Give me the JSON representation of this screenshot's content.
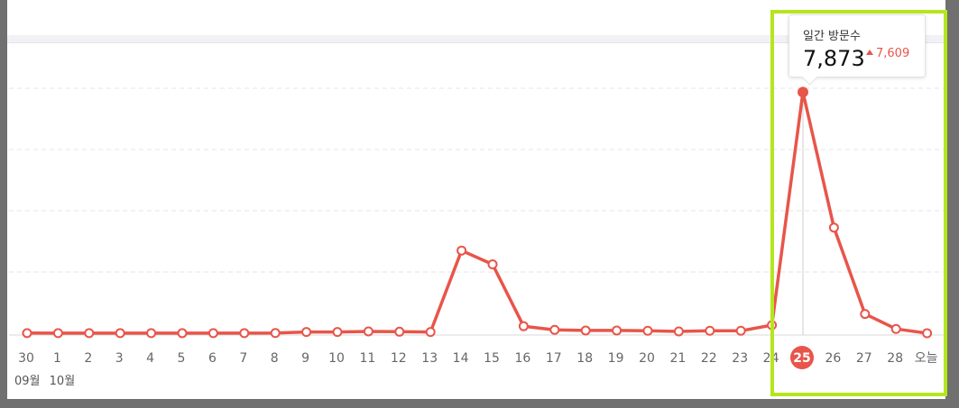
{
  "chart_data": {
    "type": "line",
    "x": [
      "30",
      "1",
      "2",
      "3",
      "4",
      "5",
      "6",
      "7",
      "8",
      "9",
      "10",
      "11",
      "12",
      "13",
      "14",
      "15",
      "16",
      "17",
      "18",
      "19",
      "20",
      "21",
      "22",
      "23",
      "24",
      "25",
      "26",
      "27",
      "28",
      "오늘"
    ],
    "series": [
      {
        "values": [
          5,
          3,
          3,
          3,
          3,
          2,
          3,
          4,
          8,
          40,
          40,
          60,
          50,
          40,
          2700,
          2250,
          230,
          110,
          90,
          90,
          80,
          60,
          80,
          80,
          264,
          7873,
          3450,
          630,
          140,
          0
        ]
      }
    ],
    "ylim": [
      0,
      8000
    ],
    "grid": true,
    "color": "#e8554a",
    "active_index": 25,
    "month_labels": [
      "09월",
      "10월"
    ]
  },
  "tooltip": {
    "title": "일간 방문수",
    "value": "7,873",
    "change": "7,609"
  }
}
